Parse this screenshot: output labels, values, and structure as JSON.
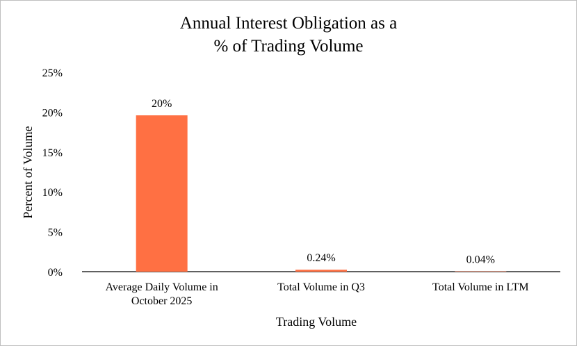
{
  "chart_data": {
    "type": "bar",
    "title": [
      "Annual Interest Obligation as a",
      "% of Trading Volume"
    ],
    "xlabel": "Trading Volume",
    "ylabel": "Percent of Volume",
    "categories": [
      [
        "Average Daily  Volume in",
        "October 2025"
      ],
      [
        "Total  Volume in Q3"
      ],
      [
        "Total Volume in LTM"
      ]
    ],
    "values": [
      19.6,
      0.24,
      0.04
    ],
    "data_labels": [
      "20%",
      "0.24%",
      "0.04%"
    ],
    "ylim": [
      0,
      25
    ],
    "yticks": [
      0,
      5,
      10,
      15,
      20,
      25
    ],
    "ytick_labels": [
      "0%",
      "5%",
      "10%",
      "15%",
      "20%",
      "25%"
    ],
    "bar_color": "#ff7043",
    "grid": false,
    "legend": "none"
  }
}
